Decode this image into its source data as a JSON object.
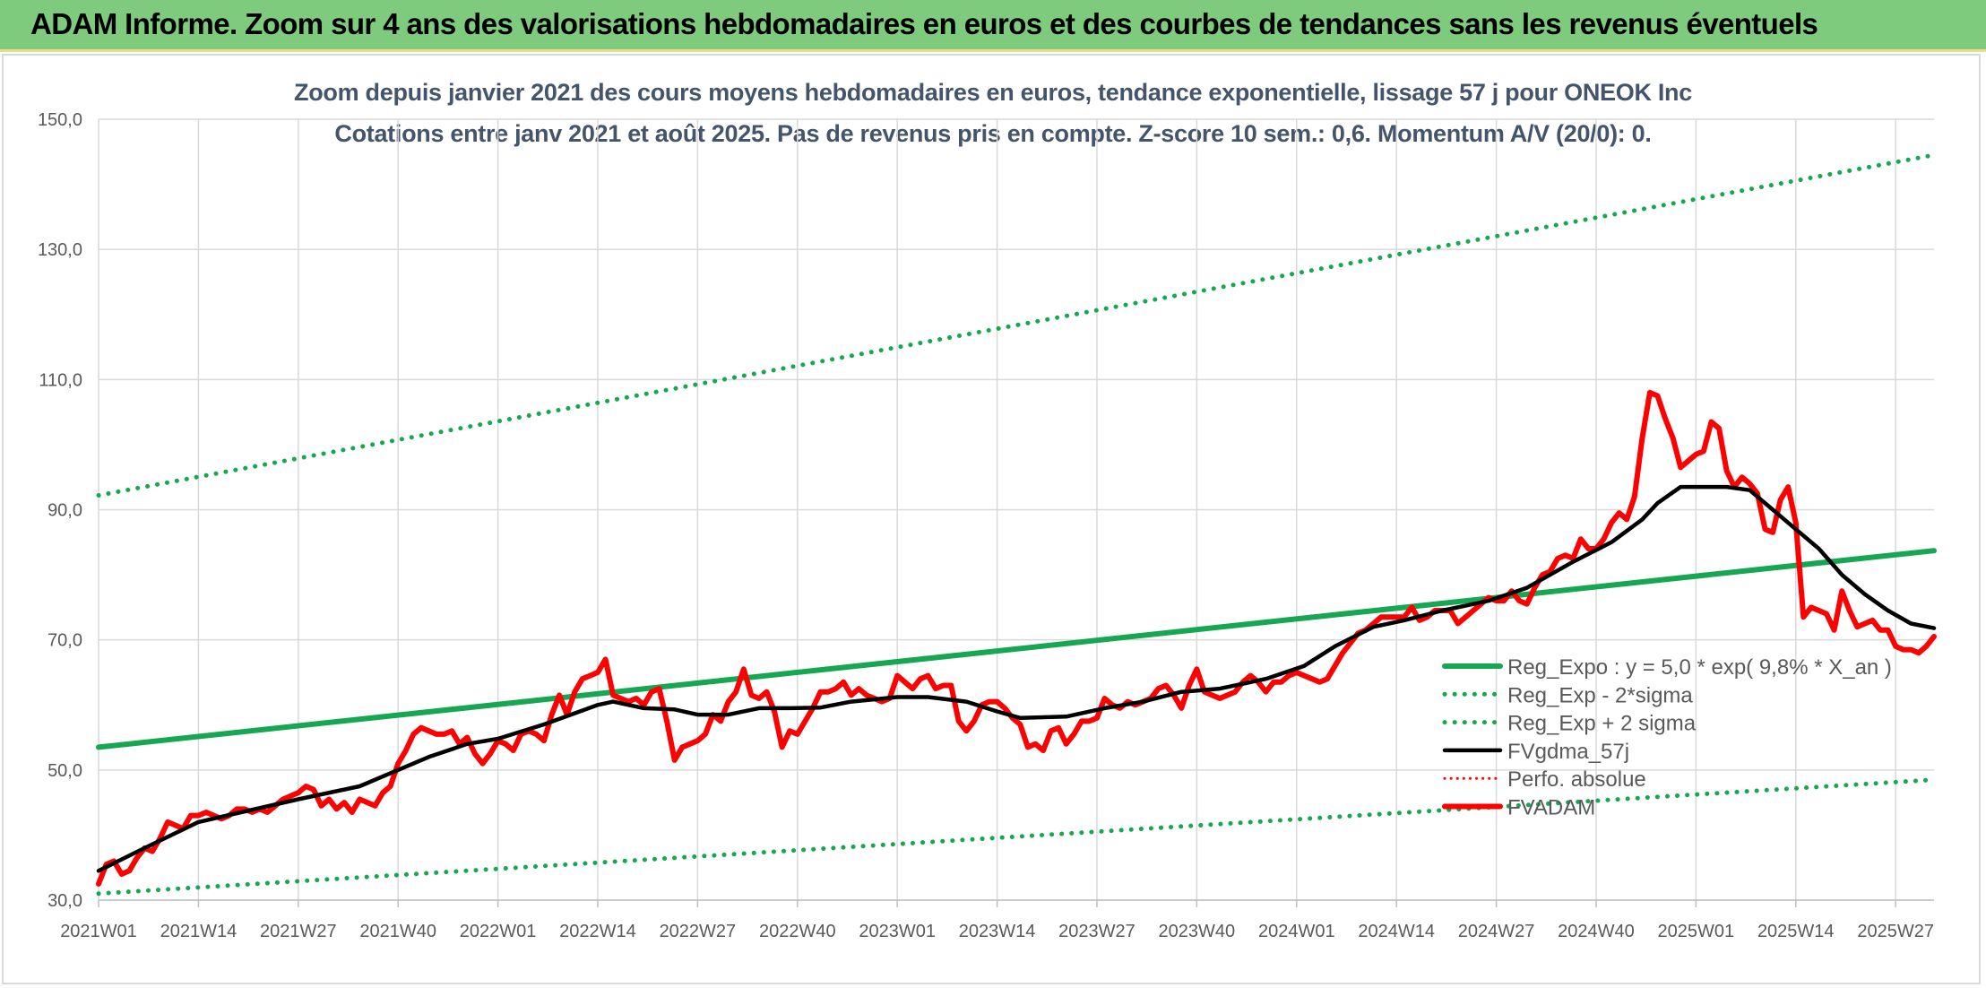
{
  "banner": {
    "title": "ADAM Informe. Zoom sur 4 ans des valorisations hebdomadaires en euros et des courbes de tendances sans les revenus éventuels"
  },
  "chart_data": {
    "type": "line",
    "title": "Zoom depuis janvier 2021 des cours moyens hebdomadaires en euros, tendance exponentielle, lissage 57 j pour ONEOK Inc",
    "subtitle": "Cotations entre janv 2021 et août 2025. Pas de revenus pris en compte. Z-score 10 sem.: 0,6. Momentum A/V (20/0): 0.",
    "ylim": [
      30,
      150
    ],
    "y_ticks": [
      "30,0",
      "50,0",
      "70,0",
      "90,0",
      "110,0",
      "130,0",
      "150,0"
    ],
    "x_ticks": [
      "2021W01",
      "2021W14",
      "2021W27",
      "2021W40",
      "2022W01",
      "2022W14",
      "2022W27",
      "2022W40",
      "2023W01",
      "2023W14",
      "2023W27",
      "2023W40",
      "2024W01",
      "2024W14",
      "2024W27",
      "2024W40",
      "2025W01",
      "2025W14",
      "2025W27"
    ],
    "x_tick_weeks": [
      0,
      13,
      26,
      39,
      52,
      65,
      78,
      91,
      104,
      117,
      130,
      143,
      156,
      169,
      182,
      195,
      208,
      221,
      234
    ],
    "n_weeks": 240,
    "grid": true,
    "legend_position": "right",
    "colors": {
      "expo": "#17a752",
      "sigma": "#17a752",
      "ma": "#000000",
      "perf": "#ff0000",
      "price": "#ff0000",
      "grid": "#d9d9d9"
    },
    "series": [
      {
        "name": "Reg_Expo : y = 5,0 * exp( 9,8% *  X_an )",
        "style": "solid-green",
        "points": [
          [
            0,
            53.5
          ],
          [
            239,
            83.7
          ]
        ]
      },
      {
        "name": "Reg_Exp - 2*sigma",
        "style": "dotted-green",
        "points": [
          [
            0,
            31.0
          ],
          [
            239,
            48.5
          ]
        ]
      },
      {
        "name": "Reg_Exp + 2 sigma",
        "style": "dotted-green",
        "points": [
          [
            0,
            92.2
          ],
          [
            239,
            144.5
          ]
        ]
      },
      {
        "name": "FVgdma_57j",
        "style": "solid-black",
        "points": [
          [
            0,
            34.5
          ],
          [
            6,
            38
          ],
          [
            13,
            42
          ],
          [
            26,
            45.5
          ],
          [
            34,
            47.5
          ],
          [
            39,
            50
          ],
          [
            43,
            52
          ],
          [
            48,
            54
          ],
          [
            52,
            54.8
          ],
          [
            58,
            57
          ],
          [
            65,
            60
          ],
          [
            67,
            60.5
          ],
          [
            71,
            59.5
          ],
          [
            75,
            59.3
          ],
          [
            78,
            58.5
          ],
          [
            82,
            58.5
          ],
          [
            86,
            59.5
          ],
          [
            90,
            59.5
          ],
          [
            94,
            59.6
          ],
          [
            98,
            60.5
          ],
          [
            104,
            61.2
          ],
          [
            108,
            61.2
          ],
          [
            113,
            60.5
          ],
          [
            117,
            59
          ],
          [
            120,
            58
          ],
          [
            126,
            58.2
          ],
          [
            131,
            59.5
          ],
          [
            136,
            60.5
          ],
          [
            141,
            62
          ],
          [
            146,
            62.5
          ],
          [
            152,
            64
          ],
          [
            157,
            66
          ],
          [
            161,
            69
          ],
          [
            166,
            72
          ],
          [
            170,
            73
          ],
          [
            175,
            74.5
          ],
          [
            181,
            76
          ],
          [
            186,
            78
          ],
          [
            192,
            82
          ],
          [
            197,
            85
          ],
          [
            201,
            88.5
          ],
          [
            203,
            91
          ],
          [
            206,
            93.5
          ],
          [
            209,
            93.5
          ],
          [
            212,
            93.5
          ],
          [
            215,
            93
          ],
          [
            218,
            90
          ],
          [
            221,
            87
          ],
          [
            224,
            84
          ],
          [
            227,
            80
          ],
          [
            230,
            77
          ],
          [
            233,
            74.5
          ],
          [
            236,
            72.5
          ],
          [
            239,
            71.8
          ]
        ]
      },
      {
        "name": "Perfo. absolue",
        "style": "dotted-red",
        "points": []
      },
      {
        "name": "FVADAM",
        "style": "solid-red",
        "points": [
          [
            0,
            32.5
          ],
          [
            1,
            35.5
          ],
          [
            2,
            36
          ],
          [
            3,
            34
          ],
          [
            4,
            34.5
          ],
          [
            5,
            36.5
          ],
          [
            6,
            38
          ],
          [
            7,
            37.5
          ],
          [
            8,
            39.5
          ],
          [
            9,
            42
          ],
          [
            10,
            41.5
          ],
          [
            11,
            41
          ],
          [
            12,
            43
          ],
          [
            13,
            43
          ],
          [
            14,
            43.5
          ],
          [
            15,
            43
          ],
          [
            16,
            42.5
          ],
          [
            17,
            43
          ],
          [
            18,
            44
          ],
          [
            19,
            44
          ],
          [
            20,
            43.5
          ],
          [
            21,
            44
          ],
          [
            22,
            43.5
          ],
          [
            23,
            44.5
          ],
          [
            24,
            45.5
          ],
          [
            25,
            46
          ],
          [
            26,
            46.5
          ],
          [
            27,
            47.5
          ],
          [
            28,
            47
          ],
          [
            29,
            44.5
          ],
          [
            30,
            45.5
          ],
          [
            31,
            44
          ],
          [
            32,
            45
          ],
          [
            33,
            43.5
          ],
          [
            34,
            45.5
          ],
          [
            35,
            45
          ],
          [
            36,
            44.5
          ],
          [
            37,
            46.5
          ],
          [
            38,
            47.5
          ],
          [
            39,
            51
          ],
          [
            40,
            53
          ],
          [
            41,
            55.5
          ],
          [
            42,
            56.5
          ],
          [
            43,
            56
          ],
          [
            44,
            55.5
          ],
          [
            45,
            55.5
          ],
          [
            46,
            56
          ],
          [
            47,
            54
          ],
          [
            48,
            55
          ],
          [
            49,
            52.5
          ],
          [
            50,
            51
          ],
          [
            51,
            52.5
          ],
          [
            52,
            54.5
          ],
          [
            53,
            54
          ],
          [
            54,
            53
          ],
          [
            55,
            55.5
          ],
          [
            56,
            56
          ],
          [
            57,
            55.5
          ],
          [
            58,
            54.5
          ],
          [
            59,
            58.5
          ],
          [
            60,
            61.5
          ],
          [
            61,
            58.5
          ],
          [
            62,
            62
          ],
          [
            63,
            64
          ],
          [
            64,
            64.5
          ],
          [
            65,
            65
          ],
          [
            66,
            67
          ],
          [
            67,
            61.5
          ],
          [
            68,
            61
          ],
          [
            69,
            60.5
          ],
          [
            70,
            61
          ],
          [
            71,
            60
          ],
          [
            72,
            62
          ],
          [
            73,
            62.5
          ],
          [
            74,
            57.5
          ],
          [
            75,
            51.5
          ],
          [
            76,
            53.5
          ],
          [
            77,
            54
          ],
          [
            78,
            54.5
          ],
          [
            79,
            55.5
          ],
          [
            80,
            58.5
          ],
          [
            81,
            57.5
          ],
          [
            82,
            60.5
          ],
          [
            83,
            62
          ],
          [
            84,
            65.5
          ],
          [
            85,
            61.5
          ],
          [
            86,
            61
          ],
          [
            87,
            62
          ],
          [
            88,
            59
          ],
          [
            89,
            53.5
          ],
          [
            90,
            56
          ],
          [
            91,
            55.5
          ],
          [
            92,
            57.5
          ],
          [
            93,
            59.5
          ],
          [
            94,
            62
          ],
          [
            95,
            62
          ],
          [
            96,
            62.5
          ],
          [
            97,
            63.5
          ],
          [
            98,
            61.5
          ],
          [
            99,
            62.5
          ],
          [
            100,
            61.5
          ],
          [
            101,
            61
          ],
          [
            102,
            60.5
          ],
          [
            103,
            61
          ],
          [
            104,
            64.5
          ],
          [
            105,
            63.5
          ],
          [
            106,
            62.5
          ],
          [
            107,
            64
          ],
          [
            108,
            64.5
          ],
          [
            109,
            62.5
          ],
          [
            110,
            63
          ],
          [
            111,
            63
          ],
          [
            112,
            57.5
          ],
          [
            113,
            56
          ],
          [
            114,
            57.5
          ],
          [
            115,
            60
          ],
          [
            116,
            60.5
          ],
          [
            117,
            60.5
          ],
          [
            118,
            59.5
          ],
          [
            119,
            58
          ],
          [
            120,
            57
          ],
          [
            121,
            53.5
          ],
          [
            122,
            54
          ],
          [
            123,
            53
          ],
          [
            124,
            56
          ],
          [
            125,
            56.5
          ],
          [
            126,
            54
          ],
          [
            127,
            55.5
          ],
          [
            128,
            57.5
          ],
          [
            129,
            57.5
          ],
          [
            130,
            58
          ],
          [
            131,
            61
          ],
          [
            132,
            60
          ],
          [
            133,
            59.5
          ],
          [
            134,
            60.5
          ],
          [
            135,
            60
          ],
          [
            136,
            60.5
          ],
          [
            137,
            61
          ],
          [
            138,
            62.5
          ],
          [
            139,
            63
          ],
          [
            140,
            61.5
          ],
          [
            141,
            59.5
          ],
          [
            142,
            63
          ],
          [
            143,
            65.5
          ],
          [
            144,
            62
          ],
          [
            145,
            61.5
          ],
          [
            146,
            61
          ],
          [
            147,
            61.5
          ],
          [
            148,
            62
          ],
          [
            149,
            63.5
          ],
          [
            150,
            64.5
          ],
          [
            151,
            63.5
          ],
          [
            152,
            62
          ],
          [
            153,
            63.5
          ],
          [
            154,
            63.5
          ],
          [
            155,
            64.5
          ],
          [
            156,
            65
          ],
          [
            157,
            64.5
          ],
          [
            158,
            64
          ],
          [
            159,
            63.5
          ],
          [
            160,
            64
          ],
          [
            161,
            66
          ],
          [
            162,
            68
          ],
          [
            163,
            69.5
          ],
          [
            164,
            71
          ],
          [
            165,
            71.5
          ],
          [
            166,
            72.5
          ],
          [
            167,
            73.5
          ],
          [
            168,
            73.5
          ],
          [
            169,
            73.5
          ],
          [
            170,
            73.5
          ],
          [
            171,
            75
          ],
          [
            172,
            73
          ],
          [
            173,
            73.5
          ],
          [
            174,
            74.5
          ],
          [
            175,
            74.5
          ],
          [
            176,
            74.5
          ],
          [
            177,
            72.5
          ],
          [
            178,
            73.5
          ],
          [
            179,
            74.5
          ],
          [
            180,
            75.5
          ],
          [
            181,
            76.5
          ],
          [
            182,
            76
          ],
          [
            183,
            76
          ],
          [
            184,
            77.5
          ],
          [
            185,
            76
          ],
          [
            186,
            75.5
          ],
          [
            187,
            78
          ],
          [
            188,
            80
          ],
          [
            189,
            80.5
          ],
          [
            190,
            82.5
          ],
          [
            191,
            83
          ],
          [
            192,
            82.5
          ],
          [
            193,
            85.5
          ],
          [
            194,
            84
          ],
          [
            195,
            84
          ],
          [
            196,
            85.5
          ],
          [
            197,
            88
          ],
          [
            198,
            89.5
          ],
          [
            199,
            88.5
          ],
          [
            200,
            92
          ],
          [
            201,
            101
          ],
          [
            202,
            108
          ],
          [
            203,
            107.5
          ],
          [
            204,
            104
          ],
          [
            205,
            101
          ],
          [
            206,
            96.5
          ],
          [
            207,
            97.5
          ],
          [
            208,
            98.5
          ],
          [
            209,
            99
          ],
          [
            210,
            103.5
          ],
          [
            211,
            102.5
          ],
          [
            212,
            96
          ],
          [
            213,
            93.5
          ],
          [
            214,
            95
          ],
          [
            215,
            94
          ],
          [
            216,
            92.5
          ],
          [
            217,
            87
          ],
          [
            218,
            86.5
          ],
          [
            219,
            91.5
          ],
          [
            220,
            93.5
          ],
          [
            221,
            88
          ],
          [
            222,
            73.5
          ],
          [
            223,
            75
          ],
          [
            224,
            74.5
          ],
          [
            225,
            74
          ],
          [
            226,
            71.5
          ],
          [
            227,
            77.5
          ],
          [
            228,
            74.5
          ],
          [
            229,
            72
          ],
          [
            230,
            72.5
          ],
          [
            231,
            73
          ],
          [
            232,
            71.5
          ],
          [
            233,
            71.5
          ],
          [
            234,
            69
          ],
          [
            235,
            68.5
          ],
          [
            236,
            68.5
          ],
          [
            237,
            68
          ],
          [
            238,
            69
          ],
          [
            239,
            70.5
          ]
        ]
      }
    ]
  }
}
